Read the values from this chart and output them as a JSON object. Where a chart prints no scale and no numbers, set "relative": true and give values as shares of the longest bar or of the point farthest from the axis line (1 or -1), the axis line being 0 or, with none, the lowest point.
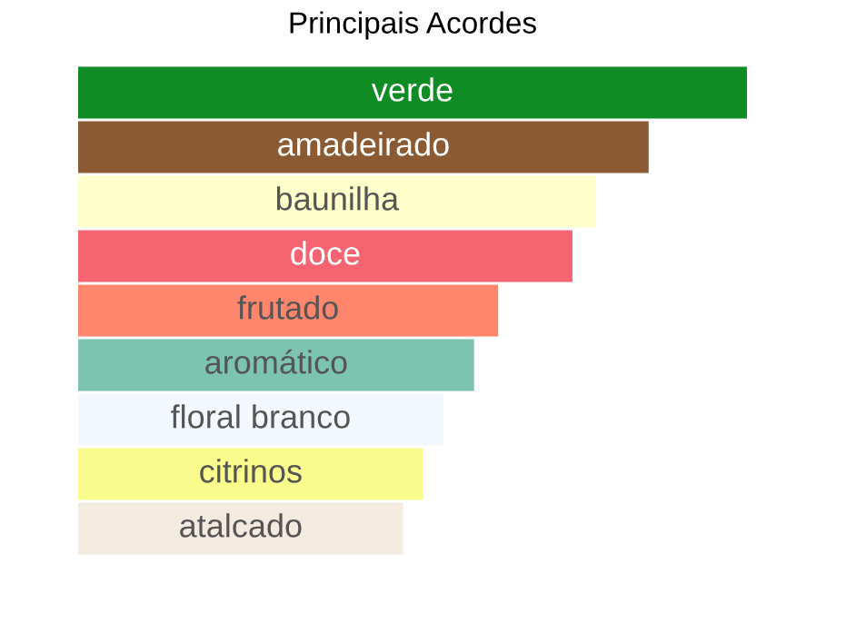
{
  "chart_data": {
    "type": "bar",
    "orientation": "horizontal",
    "relative": true,
    "title": "Principais Acordes",
    "categories": [
      "verde",
      "amadeirado",
      "baunilha",
      "doce",
      "frutado",
      "aromático",
      "floral branco",
      "citrinos",
      "atalcado"
    ],
    "values": [
      1,
      0.853,
      0.774,
      0.739,
      0.628,
      0.592,
      0.546,
      0.516,
      0.486
    ],
    "colors": [
      "#0f8c24",
      "#8b5a32",
      "#ffffcc",
      "#f56470",
      "#ff866c",
      "#7cc4b0",
      "#f3f7ff",
      "#f9fb8d",
      "#f4ebe0"
    ],
    "legend": false
  }
}
